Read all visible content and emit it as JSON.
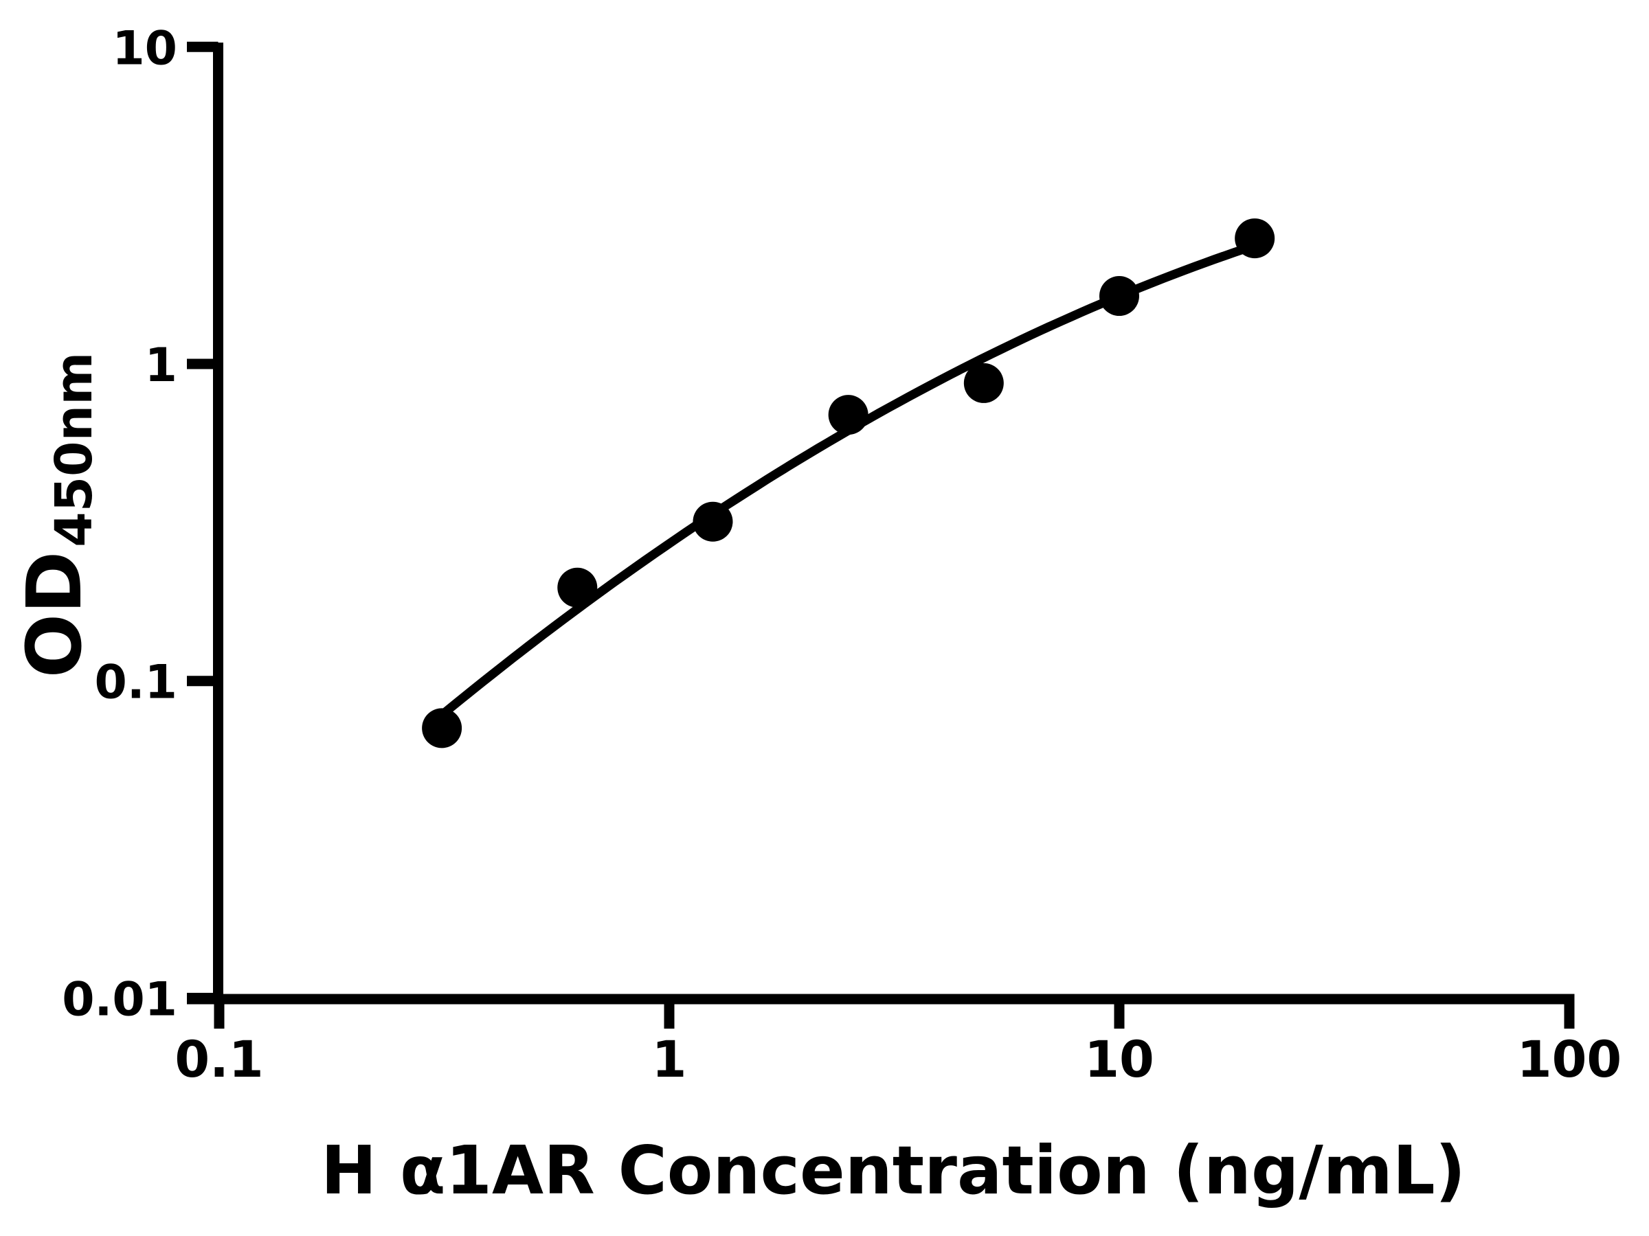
{
  "page": {
    "background_color": "#ffffff",
    "ink_color": "#000000"
  },
  "chart_data": {
    "type": "scatter",
    "subtype": "elisa-standard-curve-with-fit-line",
    "title": "",
    "xlabel": "H α1AR Concentration (ng/mL)",
    "ylabel_main": "OD",
    "ylabel_sub": "450nm",
    "x_scale": "log10",
    "y_scale": "log10",
    "xlim": [
      0.1,
      100
    ],
    "ylim": [
      0.01,
      10
    ],
    "grid": false,
    "legend": "none",
    "x_ticks": [
      {
        "value": 0.1,
        "label": "0.1"
      },
      {
        "value": 1,
        "label": "1"
      },
      {
        "value": 10,
        "label": "10"
      },
      {
        "value": 100,
        "label": "100"
      }
    ],
    "y_ticks": [
      {
        "value": 10,
        "label": "10"
      },
      {
        "value": 1,
        "label": "1"
      },
      {
        "value": 0.1,
        "label": "0.1"
      },
      {
        "value": 0.01,
        "label": "0.01"
      }
    ],
    "marker": {
      "shape": "circle",
      "color": "#000000",
      "radius_px": 29
    },
    "points": [
      {
        "x": 0.3125,
        "y": 0.071
      },
      {
        "x": 0.625,
        "y": 0.197
      },
      {
        "x": 1.25,
        "y": 0.318
      },
      {
        "x": 2.5,
        "y": 0.691
      },
      {
        "x": 5,
        "y": 0.87
      },
      {
        "x": 10,
        "y": 1.638
      },
      {
        "x": 20,
        "y": 2.49
      }
    ],
    "fit_curve": {
      "model": "log10(y) = a + b*(log10(x)-xm) + c*(log10(x)-xm)^2",
      "a": -0.21,
      "b": 0.8198,
      "c": -0.1921,
      "xm": 0.398,
      "x_start": 0.3125,
      "x_end": 20,
      "color": "#000000"
    }
  }
}
